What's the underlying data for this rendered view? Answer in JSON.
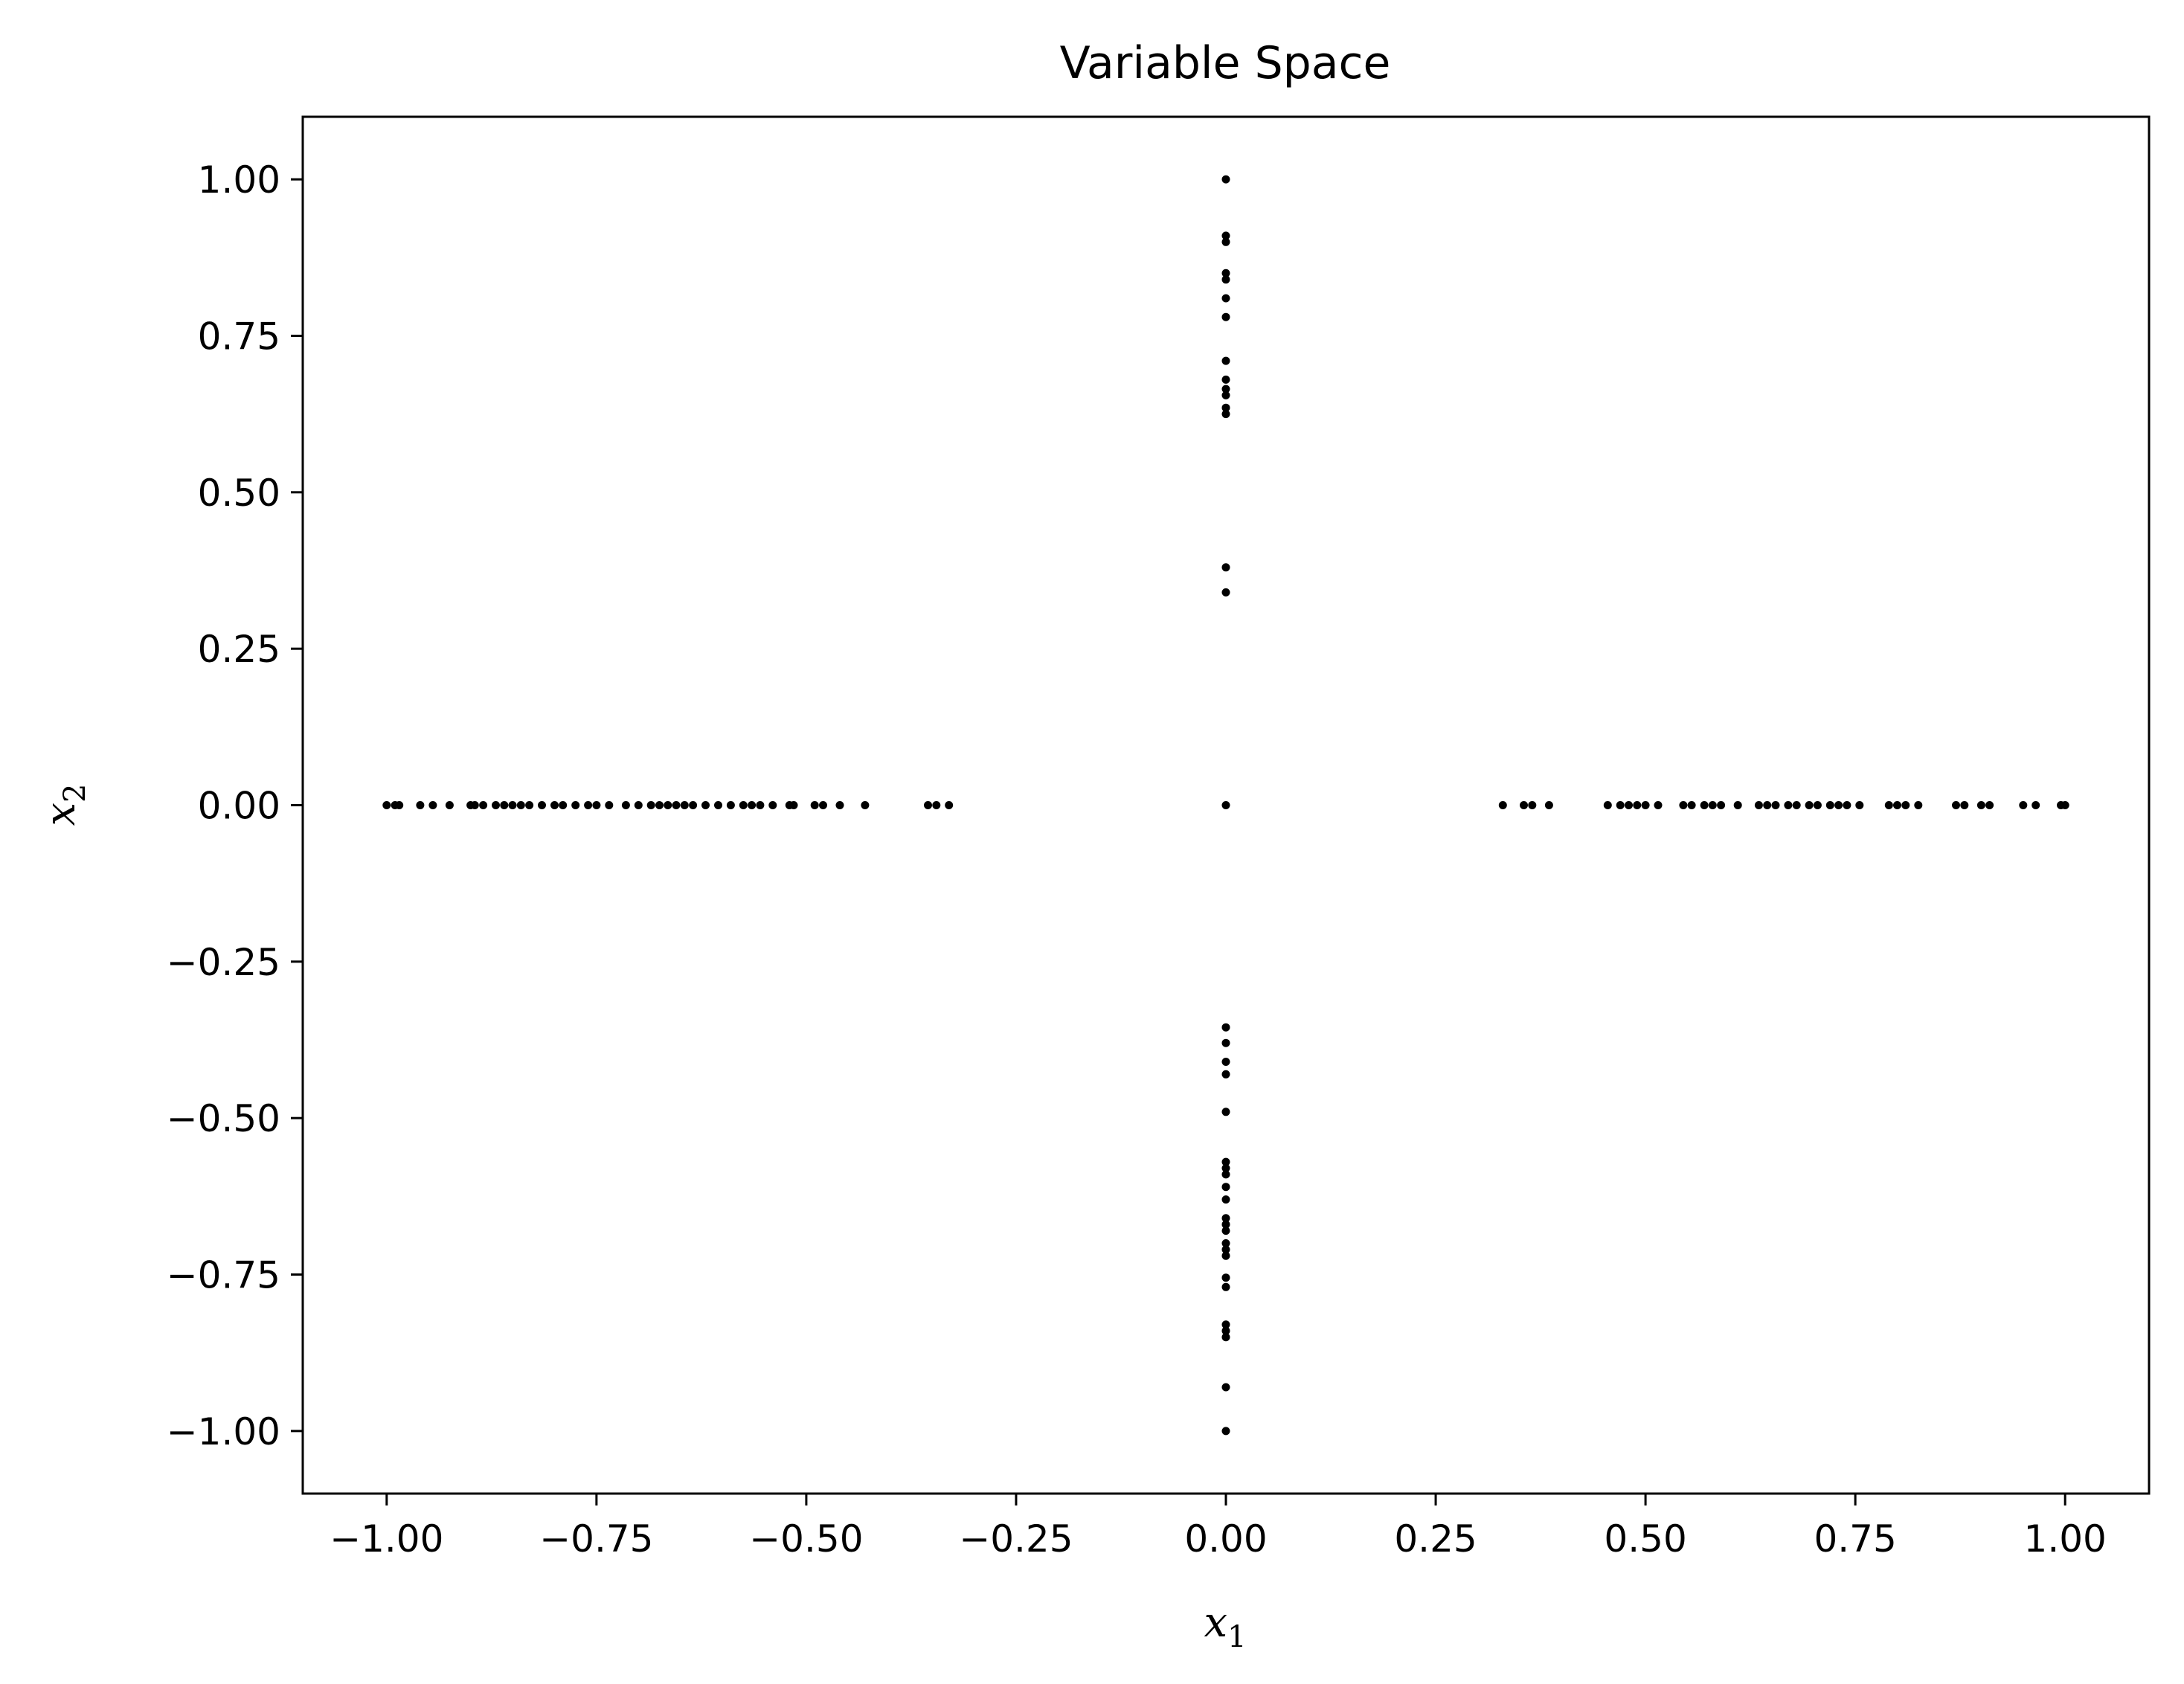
{
  "chart_data": {
    "type": "scatter",
    "title": "Variable Space",
    "xlabel": "x",
    "xlabel_sub": "1",
    "ylabel": "x",
    "ylabel_sub": "2",
    "xlim": [
      -1.1,
      1.1
    ],
    "ylim": [
      -1.1,
      1.1
    ],
    "xticks": [
      -1.0,
      -0.75,
      -0.5,
      -0.25,
      0.0,
      0.25,
      0.5,
      0.75,
      1.0
    ],
    "yticks": [
      -1.0,
      -0.75,
      -0.5,
      -0.25,
      0.0,
      0.25,
      0.5,
      0.75,
      1.0
    ],
    "xtick_labels": [
      "−1.00",
      "−0.75",
      "−0.50",
      "−0.25",
      "0.00",
      "0.25",
      "0.50",
      "0.75",
      "1.00"
    ],
    "ytick_labels": [
      "−1.00",
      "−0.75",
      "−0.50",
      "−0.25",
      "0.00",
      "0.25",
      "0.50",
      "0.75",
      "1.00"
    ],
    "grid": false,
    "marker_color": "#000000",
    "series": [
      {
        "points": [
          [
            0.0,
            1.0
          ],
          [
            0.0,
            0.91
          ],
          [
            0.0,
            0.9
          ],
          [
            0.0,
            0.85
          ],
          [
            0.0,
            0.84
          ],
          [
            0.0,
            0.81
          ],
          [
            0.0,
            0.78
          ],
          [
            0.0,
            0.71
          ],
          [
            0.0,
            0.68
          ],
          [
            0.0,
            0.665
          ],
          [
            0.0,
            0.655
          ],
          [
            0.0,
            0.635
          ],
          [
            0.0,
            0.625
          ],
          [
            0.0,
            0.38
          ],
          [
            0.0,
            0.34
          ],
          [
            0.0,
            0.0
          ],
          [
            0.0,
            -0.355
          ],
          [
            0.0,
            -0.38
          ],
          [
            0.0,
            -0.41
          ],
          [
            0.0,
            -0.43
          ],
          [
            0.0,
            -0.49
          ],
          [
            0.0,
            -0.57
          ],
          [
            0.0,
            -0.58
          ],
          [
            0.0,
            -0.59
          ],
          [
            0.0,
            -0.61
          ],
          [
            0.0,
            -0.63
          ],
          [
            0.0,
            -0.66
          ],
          [
            0.0,
            -0.67
          ],
          [
            0.0,
            -0.68
          ],
          [
            0.0,
            -0.7
          ],
          [
            0.0,
            -0.71
          ],
          [
            0.0,
            -0.72
          ],
          [
            0.0,
            -0.755
          ],
          [
            0.0,
            -0.77
          ],
          [
            0.0,
            -0.83
          ],
          [
            0.0,
            -0.84
          ],
          [
            0.0,
            -0.85
          ],
          [
            0.0,
            -0.93
          ],
          [
            0.0,
            -1.0
          ],
          [
            -1.0,
            0.0
          ],
          [
            -0.99,
            0.0
          ],
          [
            -0.985,
            0.0
          ],
          [
            -0.96,
            0.0
          ],
          [
            -0.945,
            0.0
          ],
          [
            -0.925,
            0.0
          ],
          [
            -0.9,
            0.0
          ],
          [
            -0.895,
            0.0
          ],
          [
            -0.885,
            0.0
          ],
          [
            -0.87,
            0.0
          ],
          [
            -0.86,
            0.0
          ],
          [
            -0.85,
            0.0
          ],
          [
            -0.84,
            0.0
          ],
          [
            -0.83,
            0.0
          ],
          [
            -0.815,
            0.0
          ],
          [
            -0.8,
            0.0
          ],
          [
            -0.79,
            0.0
          ],
          [
            -0.775,
            0.0
          ],
          [
            -0.76,
            0.0
          ],
          [
            -0.75,
            0.0
          ],
          [
            -0.735,
            0.0
          ],
          [
            -0.715,
            0.0
          ],
          [
            -0.7,
            0.0
          ],
          [
            -0.685,
            0.0
          ],
          [
            -0.675,
            0.0
          ],
          [
            -0.665,
            0.0
          ],
          [
            -0.655,
            0.0
          ],
          [
            -0.645,
            0.0
          ],
          [
            -0.635,
            0.0
          ],
          [
            -0.62,
            0.0
          ],
          [
            -0.605,
            0.0
          ],
          [
            -0.59,
            0.0
          ],
          [
            -0.575,
            0.0
          ],
          [
            -0.565,
            0.0
          ],
          [
            -0.555,
            0.0
          ],
          [
            -0.54,
            0.0
          ],
          [
            -0.52,
            0.0
          ],
          [
            -0.515,
            0.0
          ],
          [
            -0.49,
            0.0
          ],
          [
            -0.48,
            0.0
          ],
          [
            -0.46,
            0.0
          ],
          [
            -0.43,
            0.0
          ],
          [
            -0.355,
            0.0
          ],
          [
            -0.345,
            0.0
          ],
          [
            -0.33,
            0.0
          ],
          [
            0.33,
            0.0
          ],
          [
            0.355,
            0.0
          ],
          [
            0.365,
            0.0
          ],
          [
            0.385,
            0.0
          ],
          [
            0.455,
            0.0
          ],
          [
            0.47,
            0.0
          ],
          [
            0.48,
            0.0
          ],
          [
            0.49,
            0.0
          ],
          [
            0.5,
            0.0
          ],
          [
            0.515,
            0.0
          ],
          [
            0.545,
            0.0
          ],
          [
            0.555,
            0.0
          ],
          [
            0.57,
            0.0
          ],
          [
            0.58,
            0.0
          ],
          [
            0.59,
            0.0
          ],
          [
            0.61,
            0.0
          ],
          [
            0.635,
            0.0
          ],
          [
            0.645,
            0.0
          ],
          [
            0.655,
            0.0
          ],
          [
            0.67,
            0.0
          ],
          [
            0.68,
            0.0
          ],
          [
            0.695,
            0.0
          ],
          [
            0.705,
            0.0
          ],
          [
            0.72,
            0.0
          ],
          [
            0.73,
            0.0
          ],
          [
            0.74,
            0.0
          ],
          [
            0.755,
            0.0
          ],
          [
            0.79,
            0.0
          ],
          [
            0.8,
            0.0
          ],
          [
            0.81,
            0.0
          ],
          [
            0.825,
            0.0
          ],
          [
            0.87,
            0.0
          ],
          [
            0.88,
            0.0
          ],
          [
            0.9,
            0.0
          ],
          [
            0.91,
            0.0
          ],
          [
            0.95,
            0.0
          ],
          [
            0.965,
            0.0
          ],
          [
            0.995,
            0.0
          ],
          [
            1.0,
            0.0
          ]
        ]
      }
    ]
  }
}
